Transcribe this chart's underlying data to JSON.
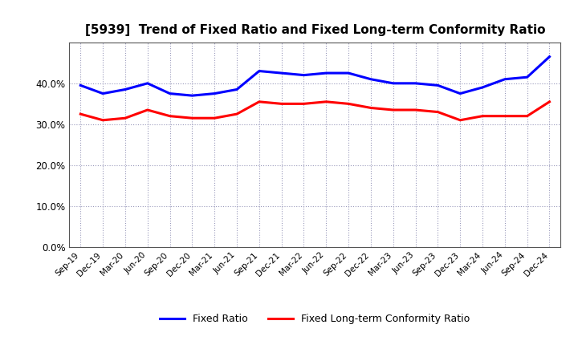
{
  "title": "[5939]  Trend of Fixed Ratio and Fixed Long-term Conformity Ratio",
  "labels": [
    "Sep-19",
    "Dec-19",
    "Mar-20",
    "Jun-20",
    "Sep-20",
    "Dec-20",
    "Mar-21",
    "Jun-21",
    "Sep-21",
    "Dec-21",
    "Mar-22",
    "Jun-22",
    "Sep-22",
    "Dec-22",
    "Mar-23",
    "Jun-23",
    "Sep-23",
    "Dec-23",
    "Mar-24",
    "Jun-24",
    "Sep-24",
    "Dec-24"
  ],
  "fixed_ratio": [
    39.5,
    37.5,
    38.5,
    40.0,
    37.5,
    37.0,
    37.5,
    38.5,
    43.0,
    42.5,
    42.0,
    42.5,
    42.5,
    41.0,
    40.0,
    40.0,
    39.5,
    37.5,
    39.0,
    41.0,
    41.5,
    46.5
  ],
  "fixed_lt_ratio": [
    32.5,
    31.0,
    31.5,
    33.5,
    32.0,
    31.5,
    31.5,
    32.5,
    35.5,
    35.0,
    35.0,
    35.5,
    35.0,
    34.0,
    33.5,
    33.5,
    33.0,
    31.0,
    32.0,
    32.0,
    32.0,
    35.5
  ],
  "fixed_ratio_color": "#0000FF",
  "fixed_lt_ratio_color": "#FF0000",
  "ylim": [
    0,
    50
  ],
  "yticks": [
    0,
    10,
    20,
    30,
    40
  ],
  "background_color": "#FFFFFF",
  "grid_color": "#9999BB",
  "legend_fixed_ratio": "Fixed Ratio",
  "legend_fixed_lt_ratio": "Fixed Long-term Conformity Ratio"
}
